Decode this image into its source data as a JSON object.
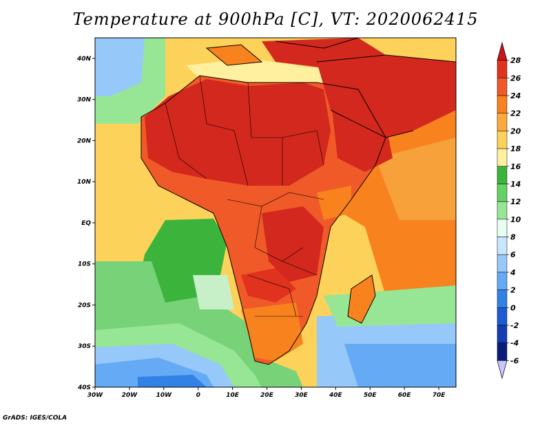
{
  "title": "Temperature at 900hPa [C], VT: 2020062415",
  "footer": "GrADS: IGES/COLA",
  "map": {
    "lon_ticks": [
      "30W",
      "20W",
      "10W",
      "0",
      "10E",
      "20E",
      "30E",
      "40E",
      "50E",
      "60E",
      "70E"
    ],
    "lat_ticks": [
      "40N",
      "30N",
      "20N",
      "10N",
      "EQ",
      "10S",
      "20S",
      "30S",
      "40S"
    ],
    "lon_range": [
      -30,
      75
    ],
    "lat_range": [
      -40,
      45
    ]
  },
  "colorbar": {
    "labels": [
      "28",
      "26",
      "24",
      "22",
      "20",
      "18",
      "16",
      "14",
      "12",
      "10",
      "8",
      "6",
      "4",
      "2",
      "0",
      "-2",
      "-4",
      "-6"
    ],
    "colors": [
      "#c8141e",
      "#e0321e",
      "#f05a28",
      "#f8821e",
      "#fbaa3c",
      "#fcd25a",
      "#fff0a0",
      "#3cb43c",
      "#64d264",
      "#96e696",
      "#e6fff0",
      "#c8e6ff",
      "#96c8fa",
      "#64aaf5",
      "#3282e6",
      "#1e5ad2",
      "#143cb4",
      "#0a1e78",
      "#c8c8ff"
    ]
  },
  "field_colors": {
    "hot": "#d2281e",
    "warm": "#f05a28",
    "orange": "#f8821e",
    "light_orange": "#fbaa3c",
    "yellow": "#fcd25a",
    "pale": "#fff0a0",
    "green": "#3cb43c",
    "light_green": "#78d278",
    "pale_green": "#c8f0c8",
    "cyan": "#e6fff0",
    "light_blue": "#96c8fa",
    "blue": "#64aaf5",
    "deep_blue": "#3282e6"
  }
}
